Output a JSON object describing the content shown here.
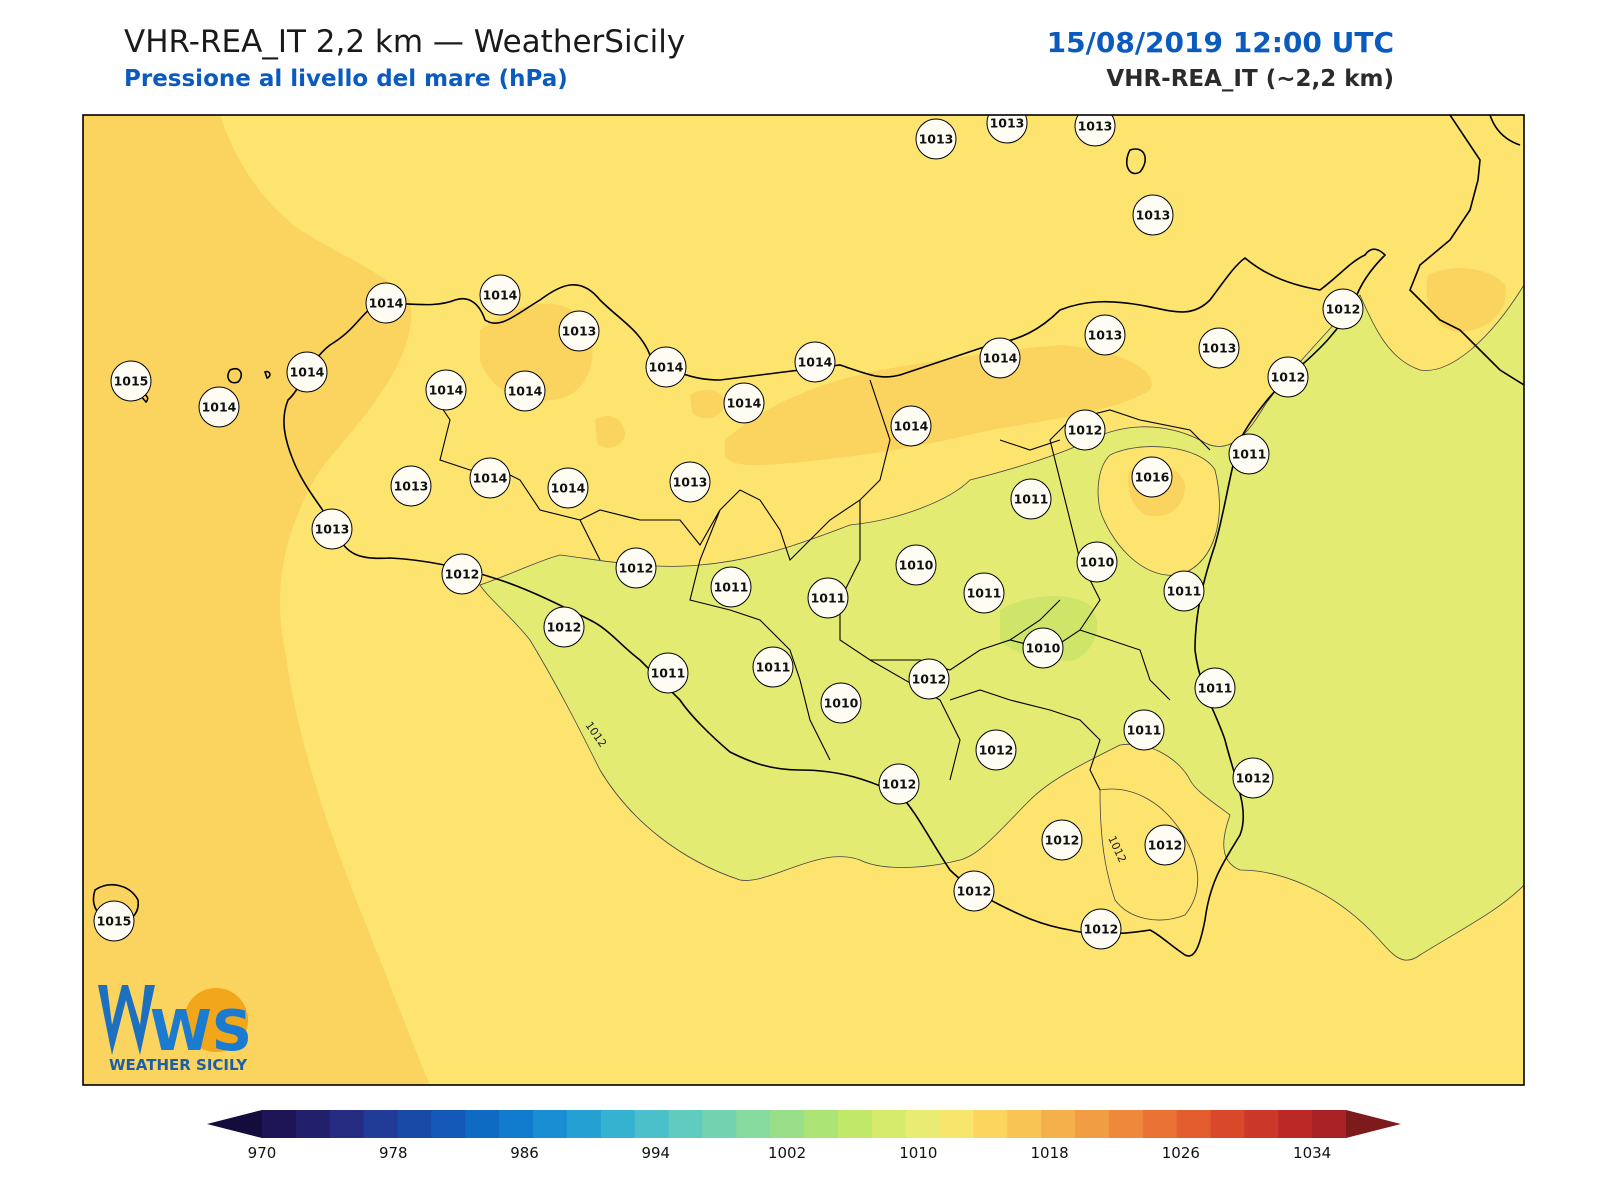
{
  "header": {
    "title": "VHR-REA_IT 2,2 km — WeatherSicily",
    "subtitle": "Pressione al livello del mare (hPa)",
    "datetime": "15/08/2019 12:00 UTC",
    "model": "VHR-REA_IT (~2,2 km)"
  },
  "map": {
    "variable": "Pressione al livello del mare",
    "unit": "hPa",
    "contour_labels": [
      "1012",
      "1012"
    ],
    "colors": {
      "sea_west": "#fbd35f",
      "sea_main": "#fce46e",
      "low_area": "#e3eb72",
      "lower_area": "#cfe56a",
      "high_patch": "#fbd35f",
      "coast": "#000000",
      "frame": "#000000"
    },
    "stations": [
      "1013",
      "1013",
      "1013",
      "1013",
      "1014",
      "1014",
      "1013",
      "1012",
      "1014",
      "1014",
      "1015",
      "1014",
      "1014",
      "1014",
      "1014",
      "1014",
      "1013",
      "1014",
      "1013",
      "1012",
      "1014",
      "1012",
      "1011",
      "1013",
      "1014",
      "1013",
      "1016",
      "1014",
      "1011",
      "1013",
      "1012",
      "1012",
      "1011",
      "1010",
      "1011",
      "1011",
      "1010",
      "1011",
      "1010",
      "1011",
      "1011",
      "1012",
      "1011",
      "1010",
      "1012",
      "1012",
      "1011",
      "1012",
      "1012",
      "1012",
      "1012",
      "1012",
      "1012",
      "1015"
    ]
  },
  "colorbar": {
    "ticks": [
      "970",
      "978",
      "986",
      "994",
      "1002",
      "1010",
      "1018",
      "1026",
      "1034"
    ],
    "colors": [
      "#1d1555",
      "#22206b",
      "#262c82",
      "#203c97",
      "#194aa8",
      "#1459b8",
      "#0f6ac4",
      "#117bcd",
      "#1a8ed2",
      "#25a0d3",
      "#34b2d0",
      "#4bc0ca",
      "#60cbbf",
      "#73d3b0",
      "#86da9e",
      "#99df89",
      "#ace575",
      "#c1e868",
      "#d6ea6b",
      "#e8ec72",
      "#f8e66c",
      "#fcd55f",
      "#f8c453",
      "#f4b14b",
      "#f19d43",
      "#ee883b",
      "#e97234",
      "#e35d2e",
      "#d9482b",
      "#cb3729",
      "#bb2927",
      "#a92226"
    ],
    "under_color": "#140c3c",
    "over_color": "#7c1a1c"
  },
  "logo": {
    "text": "WEATHER SICILY",
    "mark": "WS"
  }
}
